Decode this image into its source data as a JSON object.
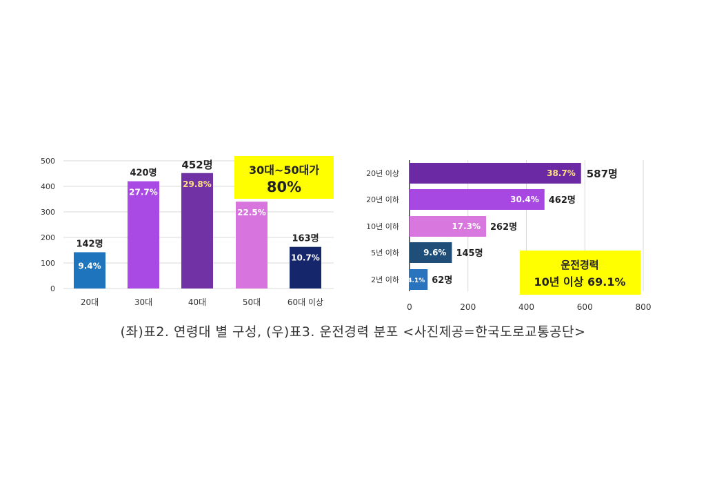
{
  "caption": "(좌)표2. 연령대 별 구성, (우)표3. 운전경력 분포 <사진제공=한국도로교통공단>",
  "chart_data": [
    {
      "type": "bar",
      "categories": [
        "20대",
        "30대",
        "40대",
        "50대",
        "60대 이상"
      ],
      "values": [
        142,
        420,
        452,
        340,
        163
      ],
      "value_labels": [
        "142명",
        "420명",
        "452명",
        "",
        "163명"
      ],
      "percent_labels": [
        "9.4%",
        "27.7%",
        "29.8%",
        "22.5%",
        "10.7%"
      ],
      "colors": [
        "#1f74be",
        "#a84ae3",
        "#7132a6",
        "#d774de",
        "#16266a"
      ],
      "ylim": [
        0,
        500
      ],
      "yticks": [
        0,
        100,
        200,
        300,
        400,
        500
      ],
      "grid": true,
      "callout": {
        "line1": "30대~50대가",
        "line2": "80%",
        "color": "#ffff00"
      }
    },
    {
      "type": "bar",
      "orientation": "horizontal",
      "categories": [
        "20년 이상",
        "20년 이하",
        "10년 이하",
        "5년 이하",
        "2년 이하"
      ],
      "values": [
        587,
        462,
        262,
        145,
        62
      ],
      "value_labels": [
        "587명",
        "462명",
        "262명",
        "145명",
        "62명"
      ],
      "percent_labels": [
        "38.7%",
        "30.4%",
        "17.3%",
        "9.6%",
        "4.1%"
      ],
      "colors": [
        "#6b2aa3",
        "#a848e2",
        "#d878df",
        "#1f4e79",
        "#2a73bd"
      ],
      "xlim": [
        0,
        800
      ],
      "xticks": [
        0,
        200,
        400,
        600,
        800
      ],
      "grid": true,
      "callout": {
        "line1": "운전경력",
        "line2": "10년 이상 69.1%",
        "color": "#ffff00"
      }
    }
  ]
}
